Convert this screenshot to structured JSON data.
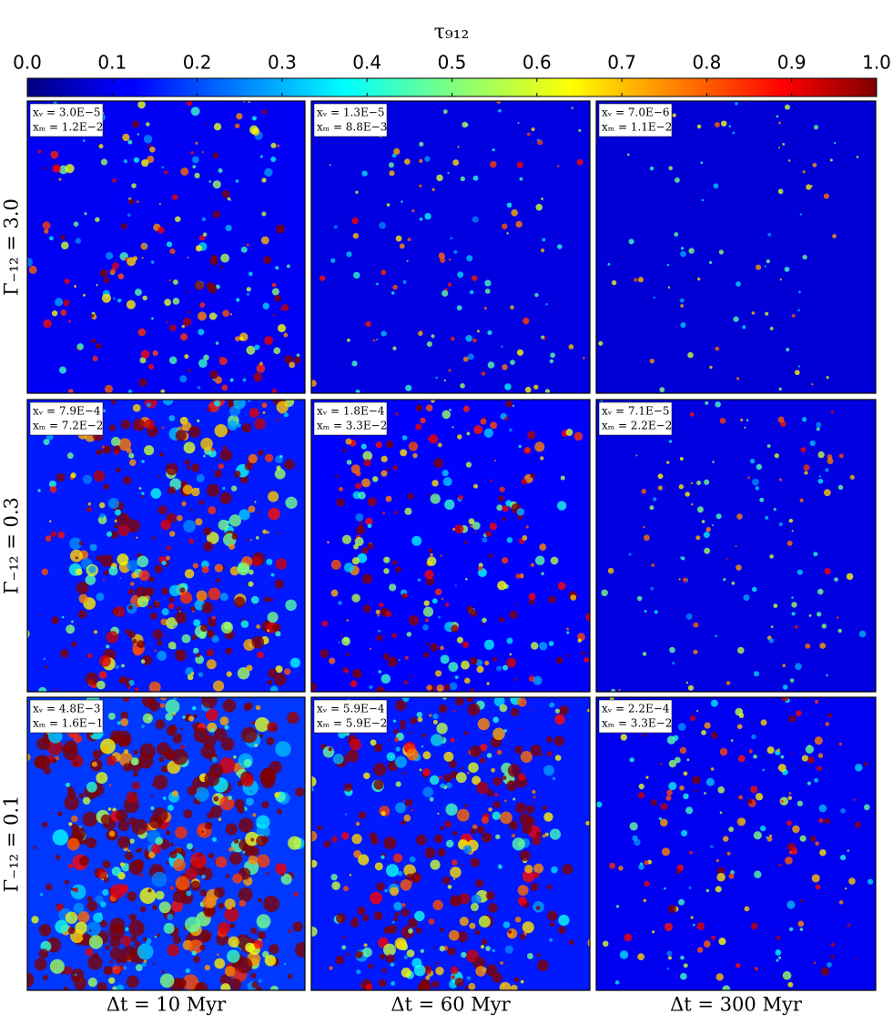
{
  "chart_data": {
    "type": "heatmap-grid",
    "colorbar_title": "τ₉₁₂",
    "clim": [
      0,
      1
    ],
    "colormap": "jet",
    "cticks": [
      {
        "value": 0,
        "label": "0.0"
      },
      0.1,
      0.2,
      0.3,
      0.4,
      0.5,
      0.6,
      0.7,
      0.8,
      0.9,
      {
        "value": 1,
        "label": "1.0"
      }
    ],
    "row_labels": [
      "Γ₋₁₂ = 3.0",
      "Γ₋₁₂ = 0.3",
      "Γ₋₁₂ = 0.1"
    ],
    "column_labels": [
      "Δt = 10 Myr",
      "Δt = 60 Myr",
      "Δt = 300 Myr"
    ],
    "panels": [
      [
        [
          "xᵥ = 3.0E−5",
          "xₘ = 1.2E−2"
        ],
        [
          "xᵥ = 1.3E−5",
          "xₘ = 8.8E−3"
        ],
        [
          "xᵥ = 7.0E−6",
          "xₘ = 1.1E−2"
        ]
      ],
      [
        [
          "xᵥ = 7.9E−4",
          "xₘ = 7.2E−2"
        ],
        [
          "xᵥ = 1.8E−4",
          "xₘ = 3.3E−2"
        ],
        [
          "xᵥ = 7.1E−5",
          "xₘ = 2.2E−2"
        ]
      ],
      [
        [
          "xᵥ = 4.8E−3",
          "xₘ = 1.6E−1"
        ],
        [
          "xᵥ = 5.9E−4",
          "xₘ = 5.9E−2"
        ],
        [
          "xᵥ = 2.2E−4",
          "xₘ = 3.3E−2"
        ]
      ]
    ]
  }
}
